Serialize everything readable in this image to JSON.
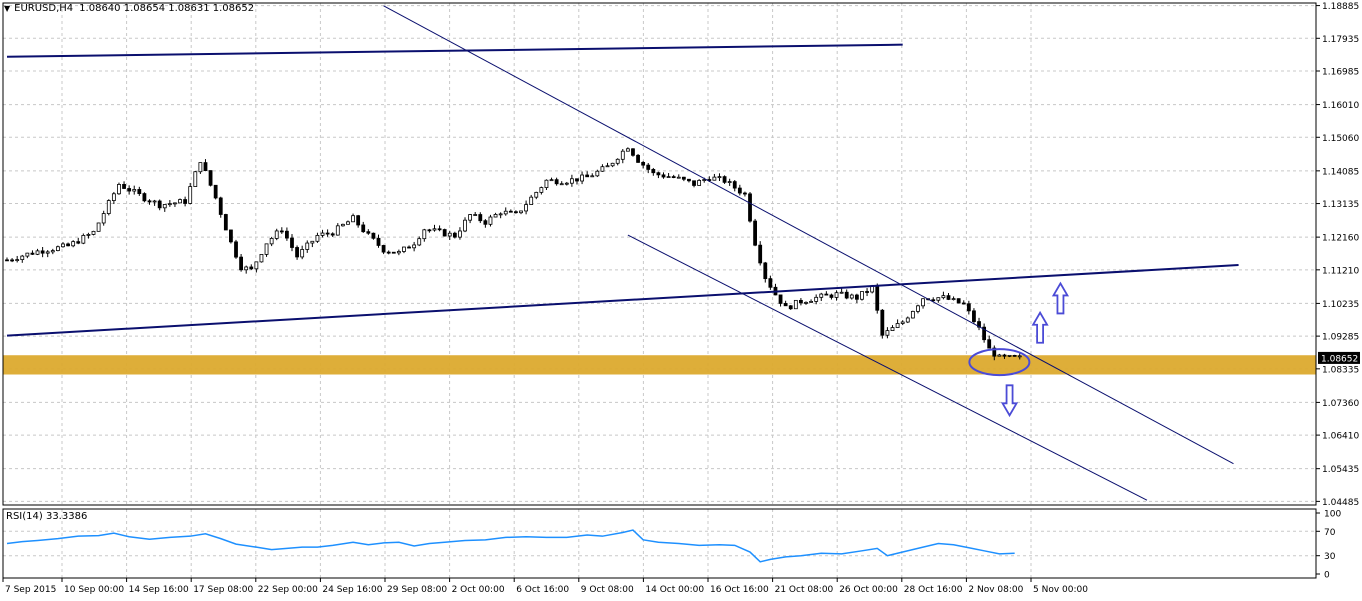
{
  "header": {
    "symbol": "EURUSD,H4",
    "values": "1.08640 1.08654 1.08631 1.08652"
  },
  "rsi_label": "RSI(14) 33.3386",
  "colors": {
    "bull_candle": "#000000",
    "bear_candle": "#000000",
    "trendline": "#0a0f6e",
    "support_zone": "#dcaa2e",
    "rsi_line": "#1e90ff",
    "ellipse": "#4b4bd6",
    "arrow": "#4b4bd6",
    "grid": "#c8c8c8",
    "price_marker": "#000000"
  },
  "chart_data": [
    {
      "type": "candlestick",
      "title": "EURUSD,H4",
      "y_ticks": [
        "1.18885",
        "1.17935",
        "1.16985",
        "1.16010",
        "1.15060",
        "1.14085",
        "1.13135",
        "1.12160",
        "1.11210",
        "1.10235",
        "1.09285",
        "1.08335",
        "1.07360",
        "1.06410",
        "1.05435",
        "1.04485"
      ],
      "ylim": [
        1.0438,
        1.1896
      ],
      "current_price": "1.08652",
      "x_labels": [
        "7 Sep 2015",
        "10 Sep 00:00",
        "14 Sep 16:00",
        "17 Sep 08:00",
        "22 Sep 00:00",
        "24 Sep 16:00",
        "29 Sep 08:00",
        "2 Oct 00:00",
        "6 Oct 16:00",
        "9 Oct 08:00",
        "14 Oct 00:00",
        "16 Oct 16:00",
        "21 Oct 08:00",
        "26 Oct 00:00",
        "28 Oct 16:00",
        "2 Nov 08:00",
        "5 Nov 00:00"
      ],
      "close_path": [
        [
          0,
          1.115
        ],
        [
          6,
          1.1175
        ],
        [
          12,
          1.119
        ],
        [
          17,
          1.123
        ],
        [
          22,
          1.137
        ],
        [
          27,
          1.133
        ],
        [
          30,
          1.131
        ],
        [
          35,
          1.132
        ],
        [
          38,
          1.144
        ],
        [
          41,
          1.133
        ],
        [
          44,
          1.12
        ],
        [
          46,
          1.113
        ],
        [
          48,
          1.112
        ],
        [
          51,
          1.12
        ],
        [
          54,
          1.124
        ],
        [
          57,
          1.116
        ],
        [
          61,
          1.122
        ],
        [
          64,
          1.123
        ],
        [
          68,
          1.127
        ],
        [
          71,
          1.122
        ],
        [
          74,
          1.118
        ],
        [
          77,
          1.117
        ],
        [
          80,
          1.12
        ],
        [
          82,
          1.124
        ],
        [
          85,
          1.123
        ],
        [
          88,
          1.122
        ],
        [
          91,
          1.128
        ],
        [
          94,
          1.126
        ],
        [
          97,
          1.129
        ],
        [
          100,
          1.128
        ],
        [
          103,
          1.133
        ],
        [
          106,
          1.138
        ],
        [
          110,
          1.138
        ],
        [
          114,
          1.139
        ],
        [
          118,
          1.142
        ],
        [
          122,
          1.148
        ],
        [
          124,
          1.144
        ],
        [
          127,
          1.14
        ],
        [
          131,
          1.139
        ],
        [
          135,
          1.137
        ],
        [
          138,
          1.139
        ],
        [
          141,
          1.138
        ],
        [
          145,
          1.134
        ],
        [
          147,
          1.12
        ],
        [
          149,
          1.11
        ],
        [
          151,
          1.105
        ],
        [
          153,
          1.101
        ],
        [
          156,
          1.103
        ],
        [
          159,
          1.104
        ],
        [
          163,
          1.105
        ],
        [
          167,
          1.104
        ],
        [
          170,
          1.107
        ],
        [
          172,
          1.093
        ],
        [
          176,
          1.097
        ],
        [
          180,
          1.104
        ],
        [
          184,
          1.104
        ],
        [
          188,
          1.102
        ],
        [
          191,
          1.095
        ],
        [
          193,
          1.089
        ],
        [
          195,
          1.0865
        ],
        [
          199,
          1.0865
        ]
      ],
      "annotations": {
        "resistance_line": [
          [
            0,
            1.174
          ],
          [
            176,
            1.1775
          ]
        ],
        "rising_trendline": [
          [
            0,
            1.093
          ],
          [
            242,
            1.1135
          ]
        ],
        "channel_upper": [
          [
            74,
            1.1888
          ],
          [
            241,
            1.0558
          ]
        ],
        "channel_lower": [
          [
            122,
            1.1222
          ],
          [
            224,
            1.0452
          ]
        ],
        "support_zone": [
          1.0817,
          1.0873
        ],
        "highlight_ellipse_center": [
          195,
          1.0853
        ],
        "up_arrows": [
          [
            203,
            1.095
          ],
          [
            207,
            1.1035
          ]
        ],
        "down_arrow": [
          197,
          1.0745
        ]
      }
    },
    {
      "type": "line",
      "title": "RSI(14) 33.3386",
      "y_ticks": [
        "100",
        "70",
        "30",
        "0"
      ],
      "ylim": [
        0,
        100
      ],
      "series": [
        {
          "name": "RSI(14)",
          "points": [
            [
              0,
              50
            ],
            [
              3,
              53
            ],
            [
              6,
              55
            ],
            [
              10,
              58
            ],
            [
              14,
              62
            ],
            [
              18,
              63
            ],
            [
              21,
              67
            ],
            [
              24,
              61
            ],
            [
              28,
              57
            ],
            [
              32,
              60
            ],
            [
              36,
              62
            ],
            [
              39,
              66
            ],
            [
              42,
              58
            ],
            [
              45,
              49
            ],
            [
              49,
              44
            ],
            [
              52,
              40
            ],
            [
              55,
              42
            ],
            [
              58,
              44
            ],
            [
              61,
              44
            ],
            [
              64,
              47
            ],
            [
              68,
              52
            ],
            [
              71,
              48
            ],
            [
              74,
              51
            ],
            [
              77,
              52
            ],
            [
              80,
              46
            ],
            [
              83,
              50
            ],
            [
              86,
              52
            ],
            [
              90,
              55
            ],
            [
              94,
              56
            ],
            [
              98,
              60
            ],
            [
              102,
              61
            ],
            [
              106,
              60
            ],
            [
              110,
              60
            ],
            [
              114,
              64
            ],
            [
              117,
              62
            ],
            [
              121,
              68
            ],
            [
              123,
              72
            ],
            [
              125,
              56
            ],
            [
              128,
              52
            ],
            [
              132,
              50
            ],
            [
              136,
              47
            ],
            [
              140,
              48
            ],
            [
              143,
              47
            ],
            [
              146,
              36
            ],
            [
              148,
              20
            ],
            [
              150,
              24
            ],
            [
              153,
              28
            ],
            [
              156,
              30
            ],
            [
              160,
              34
            ],
            [
              164,
              33
            ],
            [
              168,
              38
            ],
            [
              171,
              42
            ],
            [
              173,
              30
            ],
            [
              176,
              36
            ],
            [
              180,
              44
            ],
            [
              183,
              50
            ],
            [
              186,
              48
            ],
            [
              189,
              43
            ],
            [
              192,
              38
            ],
            [
              195,
              33
            ],
            [
              198,
              34
            ]
          ]
        }
      ]
    }
  ]
}
